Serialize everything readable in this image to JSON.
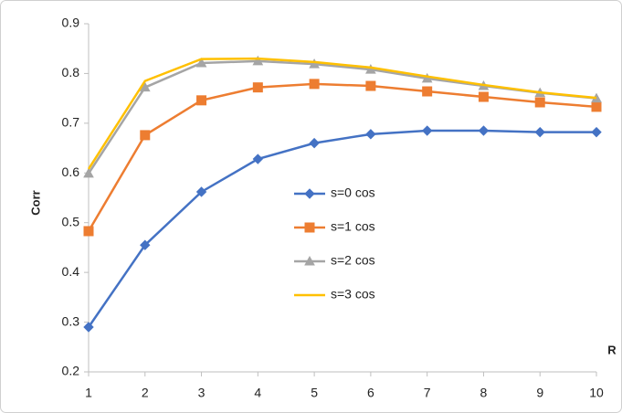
{
  "chart_data": {
    "type": "line",
    "y_label": "Corr",
    "x_label": "R",
    "x": [
      1,
      2,
      3,
      4,
      5,
      6,
      7,
      8,
      9,
      10
    ],
    "xlim": [
      1,
      10
    ],
    "xticks": [
      1,
      2,
      3,
      4,
      5,
      6,
      7,
      8,
      9,
      10
    ],
    "ylim": [
      0.2,
      0.9
    ],
    "yticks": [
      0.2,
      0.3,
      0.4,
      0.5,
      0.6,
      0.7,
      0.8,
      0.9
    ],
    "grid": false,
    "series": [
      {
        "name": "s=0 cos",
        "color": "#4472c4",
        "marker": "diamond",
        "values": [
          0.29,
          0.455,
          0.562,
          0.628,
          0.66,
          0.678,
          0.685,
          0.685,
          0.682,
          0.682
        ]
      },
      {
        "name": "s=1 cos",
        "color": "#ed7d31",
        "marker": "square",
        "values": [
          0.483,
          0.676,
          0.746,
          0.772,
          0.779,
          0.775,
          0.764,
          0.753,
          0.742,
          0.733
        ]
      },
      {
        "name": "s=2 cos",
        "color": "#a5a5a5",
        "marker": "triangle",
        "values": [
          0.599,
          0.772,
          0.821,
          0.825,
          0.819,
          0.808,
          0.79,
          0.775,
          0.761,
          0.75
        ]
      },
      {
        "name": "s=3 cos",
        "color": "#ffc000",
        "marker": "none",
        "values": [
          0.608,
          0.785,
          0.829,
          0.83,
          0.823,
          0.812,
          0.794,
          0.777,
          0.762,
          0.751
        ]
      }
    ]
  }
}
